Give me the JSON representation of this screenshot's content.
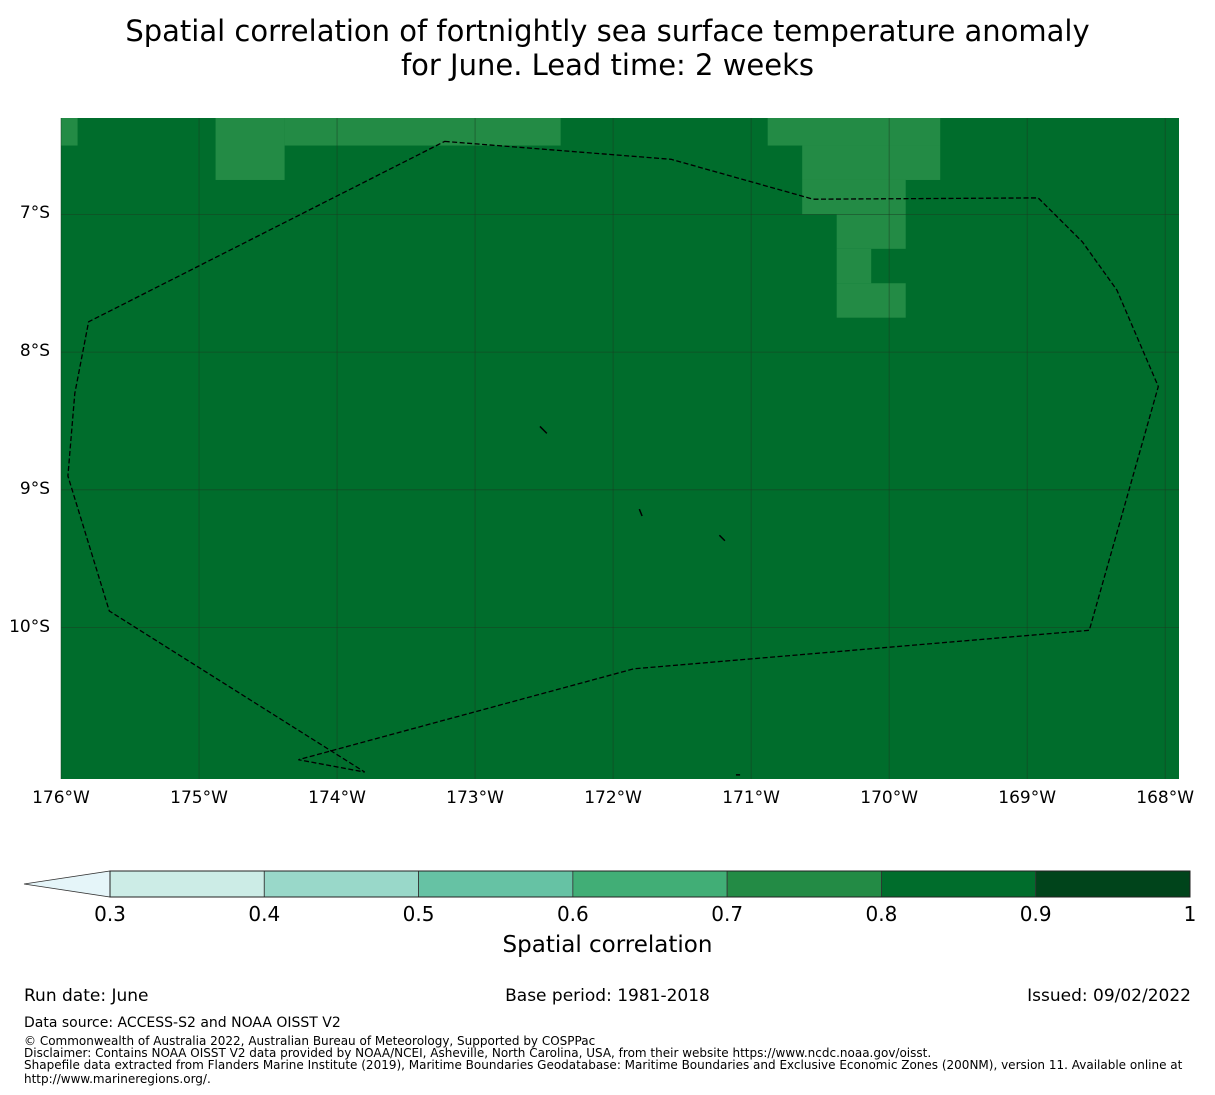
{
  "title": {
    "line1": "Spatial correlation of fortnightly sea surface temperature anomaly",
    "line2": "for June. Lead time: 2 weeks"
  },
  "map": {
    "lon_range": [
      -176,
      -167.9
    ],
    "lat_range": [
      -11.1,
      -6.3
    ],
    "lat_ticks": [
      {
        "value": -7,
        "label": "7°S"
      },
      {
        "value": -8,
        "label": "8°S"
      },
      {
        "value": -9,
        "label": "9°S"
      },
      {
        "value": -10,
        "label": "10°S"
      }
    ],
    "lon_ticks": [
      {
        "value": -176,
        "label": "176°W"
      },
      {
        "value": -175,
        "label": "175°W"
      },
      {
        "value": -174,
        "label": "174°W"
      },
      {
        "value": -173,
        "label": "173°W"
      },
      {
        "value": -172,
        "label": "172°W"
      },
      {
        "value": -171,
        "label": "171°W"
      },
      {
        "value": -170,
        "label": "170°W"
      },
      {
        "value": -169,
        "label": "169°W"
      },
      {
        "value": -168,
        "label": "168°W"
      }
    ],
    "base_color": "#006d2c",
    "patch_color": "#238b45",
    "patches": [
      {
        "lon": [
          -176.0,
          -175.88
        ],
        "lat": [
          -6.3,
          -6.5
        ]
      },
      {
        "lon": [
          -174.88,
          -174.38
        ],
        "lat": [
          -6.3,
          -6.75
        ]
      },
      {
        "lon": [
          -174.38,
          -172.38
        ],
        "lat": [
          -6.3,
          -6.5
        ]
      },
      {
        "lon": [
          -170.88,
          -169.63
        ],
        "lat": [
          -6.3,
          -6.5
        ]
      },
      {
        "lon": [
          -170.63,
          -169.63
        ],
        "lat": [
          -6.5,
          -6.75
        ]
      },
      {
        "lon": [
          -170.63,
          -169.88
        ],
        "lat": [
          -6.75,
          -7.0
        ]
      },
      {
        "lon": [
          -170.38,
          -169.88
        ],
        "lat": [
          -7.0,
          -7.25
        ]
      },
      {
        "lon": [
          -170.38,
          -170.13
        ],
        "lat": [
          -7.25,
          -7.5
        ]
      },
      {
        "lon": [
          -170.38,
          -169.88
        ],
        "lat": [
          -7.5,
          -7.75
        ]
      }
    ],
    "boundary": [
      [
        -173.22,
        -6.47
      ],
      [
        -171.58,
        -6.6
      ],
      [
        -170.55,
        -6.89
      ],
      [
        -168.92,
        -6.88
      ],
      [
        -168.6,
        -7.2
      ],
      [
        -168.35,
        -7.55
      ],
      [
        -168.05,
        -8.25
      ],
      [
        -168.55,
        -10.02
      ],
      [
        -171.85,
        -10.3
      ],
      [
        -174.28,
        -10.96
      ],
      [
        -173.8,
        -11.05
      ],
      [
        -175.65,
        -9.88
      ],
      [
        -175.95,
        -8.9
      ],
      [
        -175.9,
        -8.3
      ],
      [
        -175.8,
        -7.78
      ]
    ],
    "islands": [
      [
        [
          -172.53,
          -8.54
        ],
        [
          -172.48,
          -8.59
        ]
      ],
      [
        [
          -171.81,
          -9.14
        ],
        [
          -171.79,
          -9.19
        ]
      ],
      [
        [
          -171.23,
          -9.33
        ],
        [
          -171.19,
          -9.37
        ]
      ],
      [
        [
          -171.11,
          -11.07
        ],
        [
          -171.08,
          -11.07
        ]
      ]
    ]
  },
  "colorbar": {
    "title": "Spatial correlation",
    "under_color": "#e5f5f9",
    "bins": [
      {
        "from": 0.3,
        "to": 0.4,
        "color": "#ccece6"
      },
      {
        "from": 0.4,
        "to": 0.5,
        "color": "#99d8c9"
      },
      {
        "from": 0.5,
        "to": 0.6,
        "color": "#66c2a4"
      },
      {
        "from": 0.6,
        "to": 0.7,
        "color": "#41ae76"
      },
      {
        "from": 0.7,
        "to": 0.8,
        "color": "#238b45"
      },
      {
        "from": 0.8,
        "to": 0.9,
        "color": "#006d2c"
      },
      {
        "from": 0.9,
        "to": 1.0,
        "color": "#00441b"
      }
    ],
    "tick_labels": [
      "0.3",
      "0.4",
      "0.5",
      "0.6",
      "0.7",
      "0.8",
      "0.9",
      "1"
    ]
  },
  "footer": {
    "run_date": "Run date: June",
    "base_period": "Base period: 1981-2018",
    "issued": "Issued: 09/02/2022",
    "data_source": "Data source: ACCESS-S2 and NOAA OISST V2",
    "copyright": "© Commonwealth of Australia 2022, Australian Bureau of Meteorology, Supported by COSPPac",
    "disclaimer": "Disclaimer: Contains NOAA OISST V2 data provided by NOAA/NCEI, Asheville, North Carolina, USA, from their website https://www.ncdc.noaa.gov/oisst.",
    "shapefile_1": "Shapefile data extracted from Flanders Marine Institute (2019), Maritime Boundaries Geodatabase: Maritime Boundaries and Exclusive Economic Zones (200NM), version 11. Available online at",
    "shapefile_2": "http://www.marineregions.org/."
  }
}
